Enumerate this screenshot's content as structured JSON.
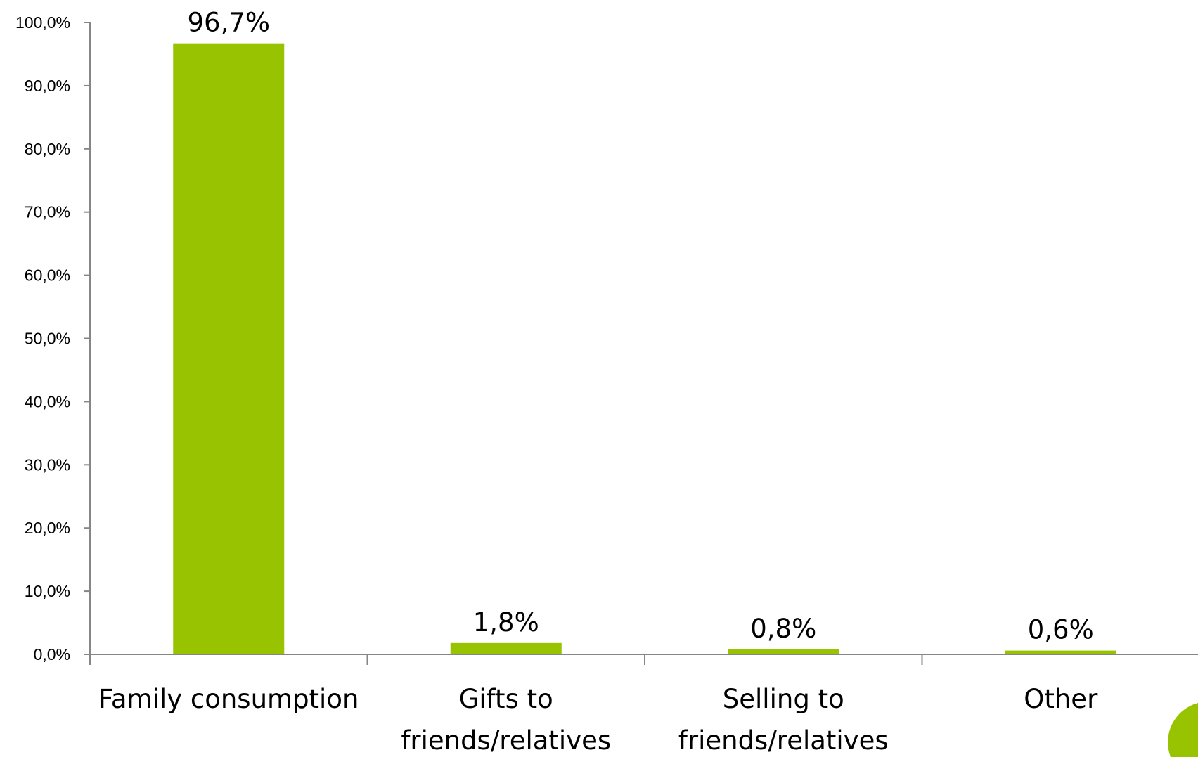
{
  "chart_data": {
    "type": "bar",
    "title": "",
    "xlabel": "",
    "ylabel": "",
    "categories": [
      [
        "Family consumption"
      ],
      [
        "Gifts to",
        "friends/relatives"
      ],
      [
        "Selling to",
        "friends/relatives"
      ],
      [
        "Other"
      ]
    ],
    "values": [
      96.7,
      1.8,
      0.8,
      0.6
    ],
    "data_labels": [
      "96,7%",
      "1,8%",
      "0,8%",
      "0,6%"
    ],
    "ylim": [
      0,
      100
    ],
    "yticks": [
      "0,0%",
      "10,0%",
      "20,0%",
      "30,0%",
      "40,0%",
      "50,0%",
      "60,0%",
      "70,0%",
      "80,0%",
      "90,0%",
      "100,0%"
    ],
    "grid": false,
    "legend": "none",
    "colors": {
      "bar": "#97c300",
      "axis": "#868686"
    }
  },
  "decor": {
    "corner_shape_color": "#97c300"
  }
}
